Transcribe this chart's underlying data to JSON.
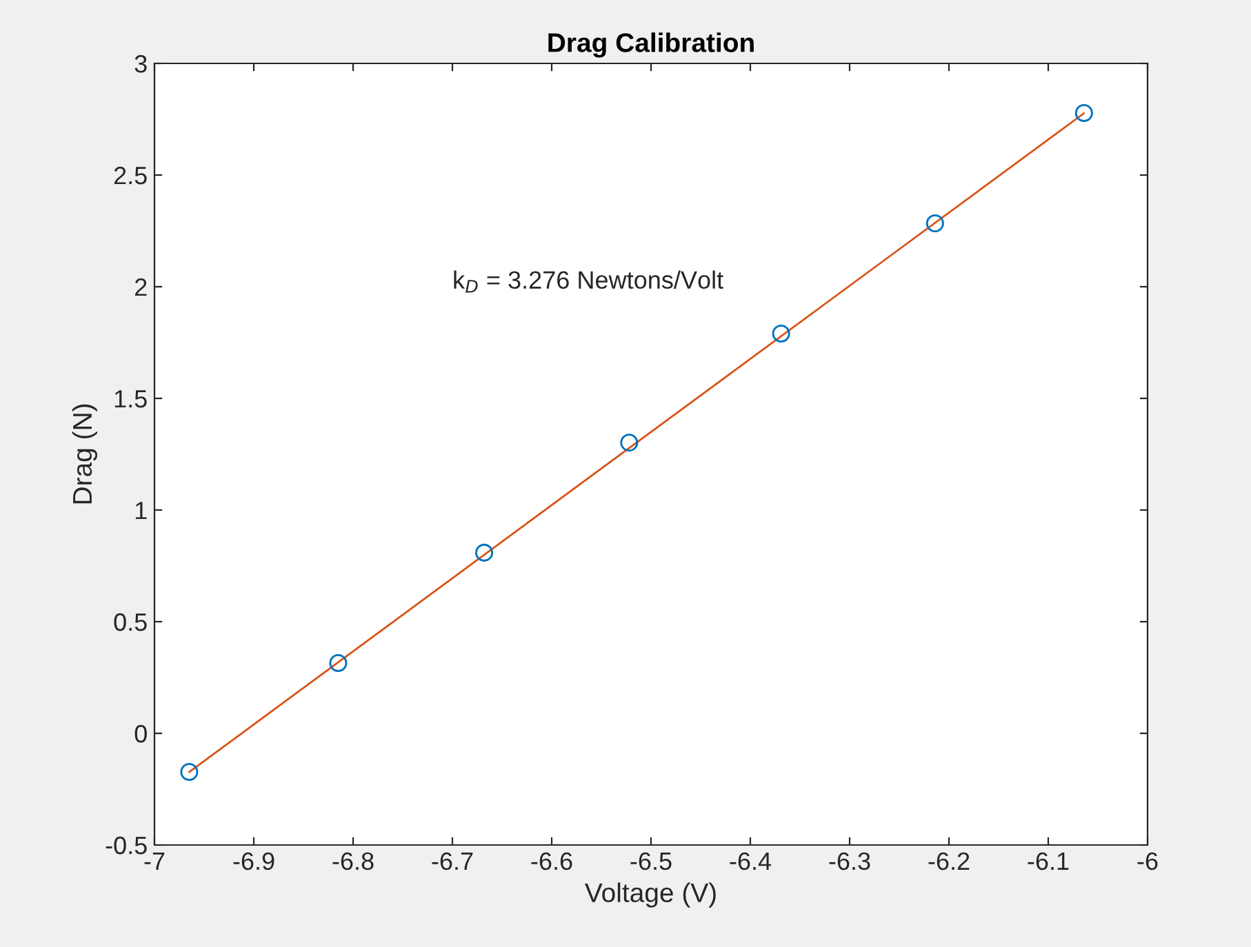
{
  "chart_data": {
    "type": "scatter",
    "title": "Drag Calibration",
    "xlabel": "Voltage (V)",
    "ylabel": "Drag (N)",
    "annotations": [
      "k$_{D}$ = 3.276 Newtons/Volt"
    ],
    "series": [
      {
        "color": "#0072bd",
        "marker": "circle",
        "x": [
          -6.965,
          -6.815,
          -6.668,
          -6.522,
          -6.369,
          -6.214,
          -6.064
        ],
        "values": [
          -0.173,
          0.315,
          0.809,
          1.302,
          1.79,
          2.284,
          2.778
        ]
      },
      {
        "type": "line",
        "color": "#d95319",
        "line_style": "solid",
        "x": [
          -6.965,
          -6.064
        ],
        "values": [
          -0.173,
          2.777
        ]
      }
    ],
    "xlim": [
      -7,
      -6
    ],
    "xticks": [
      -7,
      -6.9,
      -6.8,
      -6.7,
      -6.6,
      -6.5,
      -6.4,
      -6.3,
      -6.2,
      -6.1,
      -6
    ],
    "ylim": [
      -0.5,
      3
    ],
    "yticks": [
      -0.5,
      0,
      0.5,
      1,
      1.5,
      2,
      2.5,
      3
    ],
    "grid": false,
    "legend": false
  }
}
